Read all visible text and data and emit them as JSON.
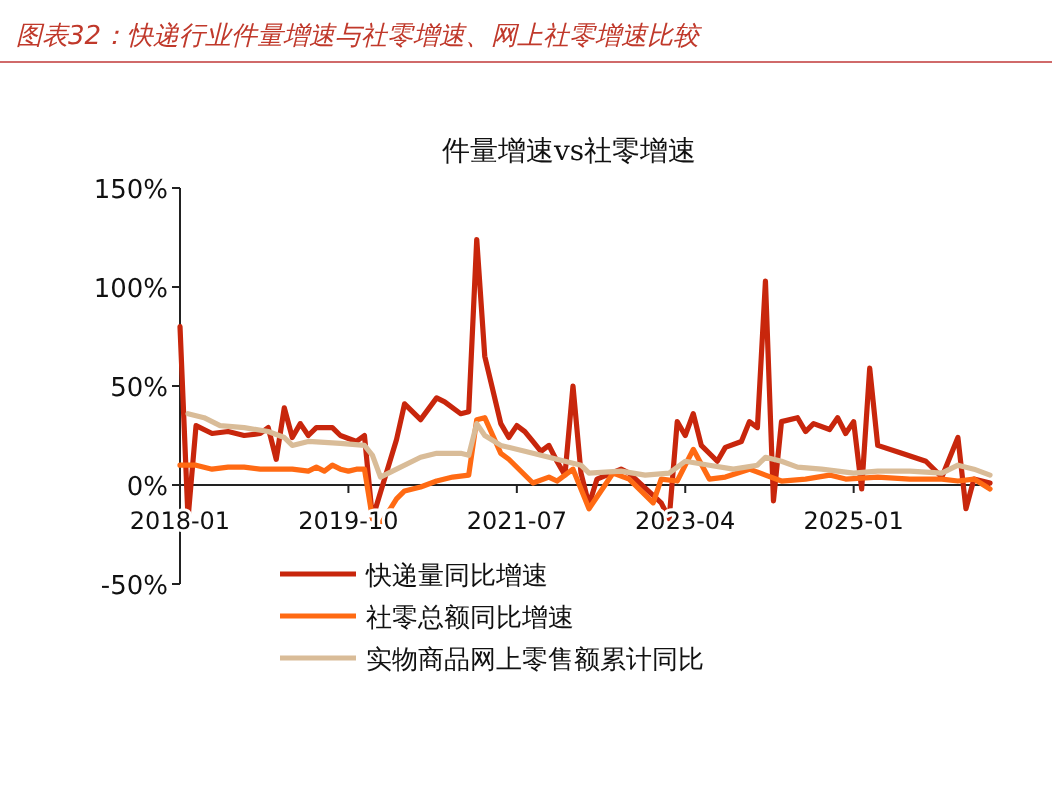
{
  "chart_data": {
    "type": "line",
    "title": "图表32：快递行业件量增速与社零增速、网上社零增速比较",
    "subtitle": "件量增速vs社零增速",
    "xlim": [
      "2018-01",
      "2026-06"
    ],
    "xticks": [
      "2018-01",
      "2019-10",
      "2021-07",
      "2023-04",
      "2025-01"
    ],
    "ylim": [
      -50,
      150
    ],
    "yticks": [
      {
        "value": -50,
        "label": "-50%"
      },
      {
        "value": 0,
        "label": "0%"
      },
      {
        "value": 50,
        "label": "50%"
      },
      {
        "value": 100,
        "label": "100%"
      },
      {
        "value": 150,
        "label": "150%"
      }
    ],
    "grid": false,
    "legend": "bottom",
    "marker": "none",
    "line_style": "solid",
    "series": [
      {
        "name": "快递量同比增速",
        "color": "#c8260c",
        "x": [
          "2018-01",
          "2018-02",
          "2018-03",
          "2018-05",
          "2018-07",
          "2018-09",
          "2018-11",
          "2018-12",
          "2019-01",
          "2019-02",
          "2019-03",
          "2019-04",
          "2019-05",
          "2019-06",
          "2019-08",
          "2019-09",
          "2019-11",
          "2019-12",
          "2020-01",
          "2020-04",
          "2020-05",
          "2020-07",
          "2020-09",
          "2020-10",
          "2020-12",
          "2021-01",
          "2021-02",
          "2021-03",
          "2021-04",
          "2021-05",
          "2021-06",
          "2021-07",
          "2021-08",
          "2021-09",
          "2021-10",
          "2021-11",
          "2021-12",
          "2022-01",
          "2022-02",
          "2022-03",
          "2022-04",
          "2022-05",
          "2022-08",
          "2022-09",
          "2023-01",
          "2023-02",
          "2023-03",
          "2023-04",
          "2023-05",
          "2023-06",
          "2023-08",
          "2023-09",
          "2023-11",
          "2023-12",
          "2024-01",
          "2024-02",
          "2024-03",
          "2024-04",
          "2024-06",
          "2024-07",
          "2024-08",
          "2024-10",
          "2024-11",
          "2024-12",
          "2025-01",
          "2025-02",
          "2025-03",
          "2025-04",
          "2025-07",
          "2025-10",
          "2025-12",
          "2026-02",
          "2026-03",
          "2026-04",
          "2026-06"
        ],
        "values": [
          80,
          -17,
          30,
          26,
          27,
          25,
          26,
          29,
          13,
          39,
          24,
          31,
          25,
          29,
          29,
          25,
          22,
          25,
          -17,
          23,
          41,
          33,
          44,
          42,
          36,
          37,
          124,
          65,
          48,
          31,
          24,
          30,
          27,
          22,
          17,
          20,
          12,
          5,
          50,
          6,
          -10,
          3,
          8,
          6,
          -9,
          -17,
          32,
          25,
          36,
          20,
          12,
          19,
          22,
          32,
          29,
          103,
          -8,
          32,
          34,
          27,
          31,
          28,
          34,
          26,
          32,
          -2,
          59,
          20,
          16,
          12,
          4,
          24,
          -12,
          3,
          1
        ]
      },
      {
        "name": "社零总额同比增速",
        "color": "#ff6a13",
        "x": [
          "2018-01",
          "2018-03",
          "2018-05",
          "2018-07",
          "2018-09",
          "2018-11",
          "2019-01",
          "2019-03",
          "2019-05",
          "2019-06",
          "2019-07",
          "2019-08",
          "2019-09",
          "2019-10",
          "2019-11",
          "2019-12",
          "2020-01",
          "2020-02",
          "2020-04",
          "2020-05",
          "2020-07",
          "2020-09",
          "2020-11",
          "2021-01",
          "2021-02",
          "2021-03",
          "2021-04",
          "2021-05",
          "2021-06",
          "2021-09",
          "2021-11",
          "2021-12",
          "2022-02",
          "2022-04",
          "2022-06",
          "2022-07",
          "2022-09",
          "2022-12",
          "2023-01",
          "2023-03",
          "2023-05",
          "2023-07",
          "2023-09",
          "2023-12",
          "2024-02",
          "2024-04",
          "2024-07",
          "2024-10",
          "2024-12",
          "2025-04",
          "2025-08",
          "2025-12",
          "2026-02",
          "2026-04",
          "2026-06"
        ],
        "values": [
          10,
          10,
          8,
          9,
          9,
          8,
          8,
          8,
          7,
          9,
          7,
          10,
          8,
          7,
          8,
          8,
          -17,
          -20,
          -7,
          -3,
          -1,
          2,
          4,
          5,
          33,
          34,
          25,
          16,
          13,
          1,
          4,
          2,
          8,
          -12,
          0,
          6,
          3,
          -9,
          3,
          2,
          18,
          3,
          4,
          8,
          5,
          2,
          3,
          5,
          3,
          4,
          3,
          3,
          2,
          3,
          -2
        ]
      },
      {
        "name": "实物商品网上零售额累计同比",
        "color": "#d9bc98",
        "x": [
          "2018-02",
          "2018-04",
          "2018-06",
          "2018-09",
          "2018-12",
          "2019-02",
          "2019-03",
          "2019-05",
          "2019-09",
          "2019-12",
          "2020-01",
          "2020-02",
          "2020-04",
          "2020-07",
          "2020-09",
          "2020-12",
          "2021-01",
          "2021-02",
          "2021-03",
          "2021-05",
          "2021-08",
          "2021-10",
          "2021-12",
          "2022-02",
          "2022-03",
          "2022-04",
          "2022-08",
          "2022-11",
          "2023-02",
          "2023-04",
          "2023-07",
          "2023-10",
          "2024-01",
          "2024-02",
          "2024-04",
          "2024-06",
          "2024-09",
          "2025-01",
          "2025-04",
          "2025-08",
          "2025-12",
          "2026-02",
          "2026-04",
          "2026-06"
        ],
        "values": [
          36,
          34,
          30,
          29,
          27,
          24,
          20,
          22,
          21,
          20,
          15,
          4,
          8,
          14,
          16,
          16,
          15,
          31,
          25,
          20,
          17,
          15,
          13,
          11,
          10,
          6,
          7,
          5,
          6,
          12,
          10,
          8,
          10,
          14,
          12,
          9,
          8,
          6,
          7,
          7,
          6,
          10,
          8,
          5
        ]
      }
    ]
  }
}
